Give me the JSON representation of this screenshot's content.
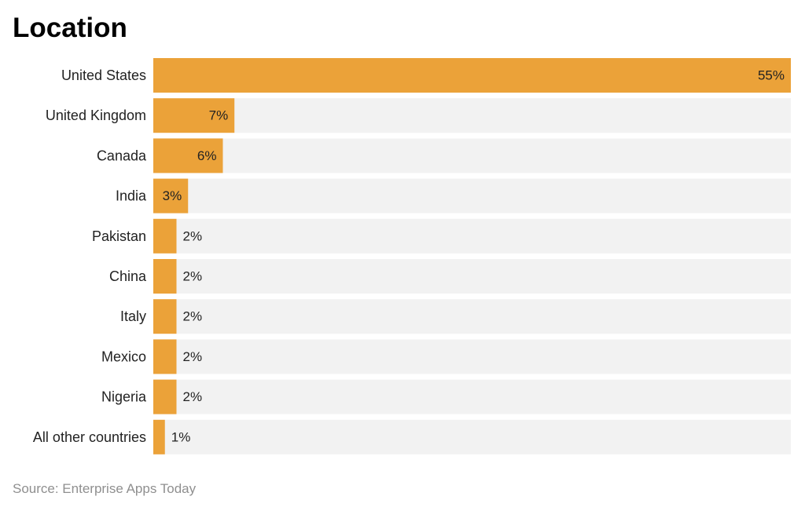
{
  "chart_data": {
    "type": "bar",
    "orientation": "horizontal",
    "title": "Location",
    "categories": [
      "United States",
      "United Kingdom",
      "Canada",
      "India",
      "Pakistan",
      "China",
      "Italy",
      "Mexico",
      "Nigeria",
      "All other countries"
    ],
    "values": [
      55,
      7,
      6,
      3,
      2,
      2,
      2,
      2,
      2,
      1
    ],
    "value_labels": [
      "55%",
      "7%",
      "6%",
      "3%",
      "2%",
      "2%",
      "2%",
      "2%",
      "2%",
      "1%"
    ],
    "xlim": [
      0,
      55
    ],
    "unit": "%",
    "grid": false,
    "legend": "none",
    "source": "Source: Enterprise Apps Today",
    "colors": {
      "bar": "#eba239",
      "track": "#f2f2f2",
      "label": "#222222",
      "source": "#8f8f8f"
    }
  }
}
